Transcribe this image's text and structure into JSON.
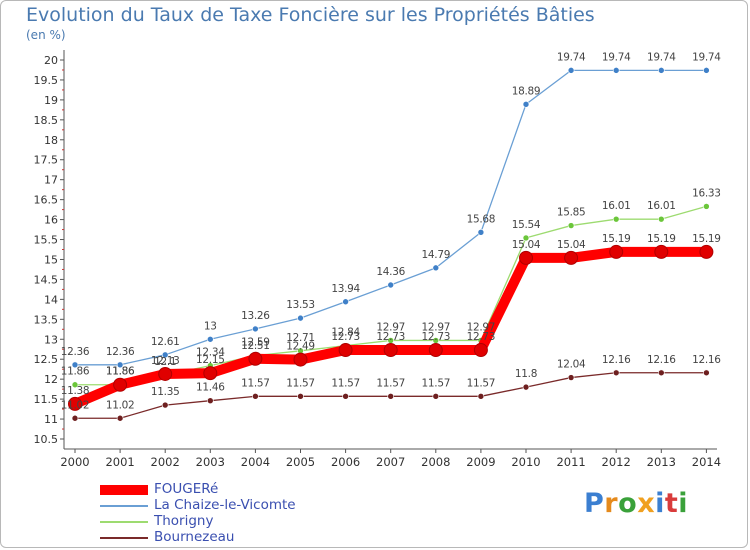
{
  "header": {
    "title": "Evolution du Taux de Taxe Foncière sur les Propriétés Bâties",
    "unit": "(en %)"
  },
  "brand": {
    "letters": [
      "P",
      "r",
      "o",
      "x",
      "i",
      "t",
      "i"
    ],
    "colors": [
      "#3b7fd1",
      "#e58a1c",
      "#3aa13a",
      "#f0a020",
      "#3b7fd1",
      "#d93b3b",
      "#3aa13a"
    ]
  },
  "chart_data": {
    "type": "line",
    "x": [
      "2000",
      "2001",
      "2002",
      "2003",
      "2004",
      "2005",
      "2006",
      "2007",
      "2008",
      "2009",
      "2010",
      "2011",
      "2012",
      "2013",
      "2014"
    ],
    "ylim": [
      10.5,
      20
    ],
    "yticks": [
      "10.5",
      "11",
      "11.5",
      "12",
      "12.5",
      "13",
      "13.5",
      "14",
      "14.5",
      "15",
      "15.5",
      "16",
      "16.5",
      "17",
      "17.5",
      "18",
      "18.5",
      "19",
      "19.5",
      "20"
    ],
    "grid": false,
    "legend_position": "bottom-left",
    "series": [
      {
        "name": "FOUGERé",
        "color": "#ff0000",
        "marker": "#e00000",
        "values": [
          11.38,
          11.86,
          12.13,
          12.15,
          12.51,
          12.49,
          12.73,
          12.73,
          12.73,
          12.73,
          15.04,
          15.04,
          15.19,
          15.19,
          15.19
        ],
        "labels": [
          "11.38",
          "11.86",
          "12.13",
          "12.15",
          "12.51",
          "12.49",
          "12.73",
          "12.73",
          "12.73",
          "12.73",
          "15.04",
          "15.04",
          "15.19",
          "15.19",
          "15.19"
        ]
      },
      {
        "name": "La Chaize-le-Vicomte",
        "color": "#6a9fd4",
        "marker": "#3f80c8",
        "values": [
          12.36,
          12.36,
          12.61,
          13,
          13.26,
          13.53,
          13.94,
          14.36,
          14.79,
          15.68,
          18.89,
          19.74,
          19.74,
          19.74,
          19.74
        ],
        "labels": [
          "12.36",
          "12.36",
          "12.61",
          "13",
          "13.26",
          "13.53",
          "13.94",
          "14.36",
          "14.79",
          "15.68",
          "18.89",
          "19.74",
          "19.74",
          "19.74",
          "19.74"
        ]
      },
      {
        "name": "Thorigny",
        "color": "#9ddb70",
        "marker": "#6bc63a",
        "values": [
          11.86,
          11.86,
          12.1,
          12.34,
          12.59,
          12.71,
          12.84,
          12.97,
          12.97,
          12.97,
          15.54,
          15.85,
          16.01,
          16.01,
          16.33
        ],
        "labels": [
          "11.86",
          "11.86",
          "12.1",
          "12.34",
          "12.59",
          "12.71",
          "12.84",
          "12.97",
          "12.97",
          "12.97",
          "15.54",
          "15.85",
          "16.01",
          "16.01",
          "16.33"
        ]
      },
      {
        "name": "Bournezeau",
        "color": "#7a2a2a",
        "marker": "#6e1f1f",
        "values": [
          11.02,
          11.02,
          11.35,
          11.46,
          11.57,
          11.57,
          11.57,
          11.57,
          11.57,
          11.57,
          11.8,
          12.04,
          12.16,
          12.16,
          12.16
        ],
        "labels": [
          "11.02",
          "11.02",
          "11.35",
          "11.46",
          "11.57",
          "11.57",
          "11.57",
          "11.57",
          "11.57",
          "11.57",
          "11.8",
          "12.04",
          "12.16",
          "12.16",
          "12.16"
        ]
      }
    ]
  }
}
